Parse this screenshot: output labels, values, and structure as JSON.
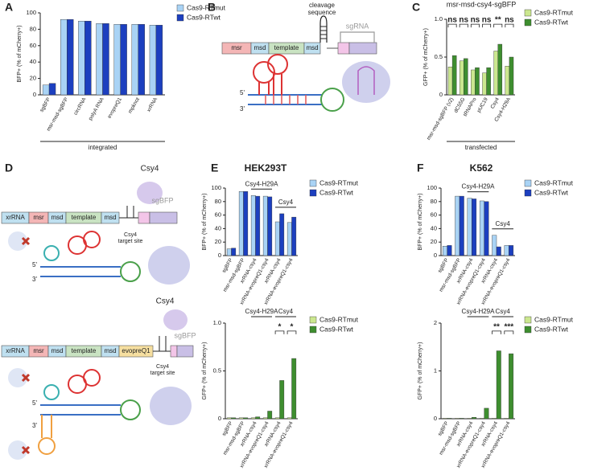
{
  "panel_labels": [
    "A",
    "B",
    "C",
    "D",
    "E",
    "F"
  ],
  "chart_data": [
    {
      "type": "bar",
      "ylabel": "BFP+ (% of mCherry+)",
      "xlabel": "integrated",
      "categories": [
        "sgBFP",
        "msr-msd-sgBFP",
        "circRNA",
        "polyA RNA",
        "evopreQ1",
        "mpknot",
        "xrRNA"
      ],
      "series": [
        {
          "name": "Cas9-RTmut",
          "color": "#a9d3f5",
          "values": [
            12,
            92,
            90,
            87,
            86,
            86,
            85
          ]
        },
        {
          "name": "Cas9-RTwt",
          "color": "#1c3fbf",
          "values": [
            14,
            92,
            90,
            87,
            86,
            86,
            85
          ]
        }
      ],
      "ylim": [
        0,
        100
      ],
      "yticks": [
        0,
        20,
        40,
        60,
        80,
        100
      ]
    },
    {
      "type": "bar",
      "title": "msr-msd-csy4-sgBFP",
      "ylabel": "GFP+ (% of mCherry+)",
      "xlabel": "transfected",
      "categories": [
        "msr-msd-sgBFP (v2)",
        "dC55G",
        "tRNAPro",
        "pUC19",
        "Csy4",
        "Csy4-H29A"
      ],
      "series": [
        {
          "name": "Cas9-RTmut",
          "color": "#cbe78f",
          "values": [
            0.37,
            0.45,
            0.33,
            0.29,
            0.58,
            0.38
          ]
        },
        {
          "name": "Cas9-RTwt",
          "color": "#3e8e2f",
          "values": [
            0.52,
            0.48,
            0.36,
            0.36,
            0.67,
            0.5
          ]
        }
      ],
      "significance": [
        "ns",
        "ns",
        "ns",
        "ns",
        "**",
        "ns"
      ],
      "ylim": [
        0,
        1
      ],
      "yticks": [
        0,
        0.5,
        {
          "value": 1,
          "label": "1.0"
        }
      ]
    },
    {
      "type": "bar",
      "title": "HEK293T",
      "ylabel": "BFP+ (% of mCherry+)",
      "categories": [
        "sgBFP",
        "msr-msd-sgBFP",
        "xrRNA-csy4",
        "xrRNA-evopreQ1-csy4",
        "xrRNA-csy4",
        "xrRNA-evopreQ1-csy4"
      ],
      "series": [
        {
          "name": "Cas9-RTmut",
          "color": "#a9d3f5",
          "values": [
            10,
            95,
            89,
            88,
            50,
            49
          ]
        },
        {
          "name": "Cas9-RTwt",
          "color": "#1c3fbf",
          "values": [
            11,
            95,
            88,
            87,
            62,
            57
          ]
        }
      ],
      "groups": [
        {
          "label": "Csy4-H29A",
          "span": [
            2,
            3
          ]
        },
        {
          "label": "Csy4",
          "span": [
            4,
            5
          ]
        }
      ],
      "ylim": [
        0,
        100
      ],
      "yticks": [
        0,
        20,
        40,
        60,
        80,
        100
      ]
    },
    {
      "type": "bar",
      "ylabel": "GFP+ (% of mCherry+)",
      "categories": [
        "sgBFP",
        "msr-msd-sgBFP",
        "xrRNA-csy4",
        "xrRNA-evopreQ1-csy4",
        "xrRNA-csy4",
        "xrRNA-evopreQ1-csy4"
      ],
      "series": [
        {
          "name": "Cas9-RTmut",
          "color": "#cbe78f",
          "values": [
            0.01,
            0.01,
            0.01,
            0.01,
            0.01,
            0.01
          ]
        },
        {
          "name": "Cas9-RTwt",
          "color": "#3e8e2f",
          "values": [
            0.01,
            0.01,
            0.02,
            0.08,
            0.4,
            0.63
          ]
        }
      ],
      "groups": [
        {
          "label": "Csy4-H29A",
          "span": [
            2,
            3
          ]
        },
        {
          "label": "Csy4",
          "span": [
            4,
            5
          ]
        }
      ],
      "significance": [
        null,
        null,
        null,
        null,
        "*",
        "*"
      ],
      "ylim": [
        0,
        1
      ],
      "yticks": [
        0,
        0.5,
        {
          "value": 1,
          "label": "1.0"
        }
      ]
    },
    {
      "type": "bar",
      "title": "K562",
      "ylabel": "BFP+ (% of mCherry+)",
      "categories": [
        "sgBFP",
        "msr-msd-sgBFP",
        "xrRNA-csy4",
        "xrRNA-evopreQ1-csy4",
        "xrRNA-csy4",
        "xrRNA-evopreQ1-csy4"
      ],
      "series": [
        {
          "name": "Cas9-RTmut",
          "color": "#a9d3f5",
          "values": [
            14,
            88,
            85,
            81,
            30,
            15
          ]
        },
        {
          "name": "Cas9-RTwt",
          "color": "#1c3fbf",
          "values": [
            15,
            88,
            84,
            80,
            13,
            15
          ]
        }
      ],
      "groups": [
        {
          "label": "Csy4-H29A",
          "span": [
            2,
            3
          ]
        },
        {
          "label": "Csy4",
          "span": [
            4,
            5
          ]
        }
      ],
      "ylim": [
        0,
        100
      ],
      "yticks": [
        0,
        20,
        40,
        60,
        80,
        100
      ]
    },
    {
      "type": "bar",
      "ylabel": "GFP+ (% of mCherry+)",
      "categories": [
        "sgBFP",
        "msr-msd-sgBFP",
        "xrRNA-csy4",
        "xrRNA-evopreQ1-csy4",
        "xrRNA-csy4",
        "xrRNA-evopreQ1-csy4"
      ],
      "series": [
        {
          "name": "Cas9-RTmut",
          "color": "#cbe78f",
          "values": [
            0.01,
            0.01,
            0.01,
            0.01,
            0.01,
            0.01
          ]
        },
        {
          "name": "Cas9-RTwt",
          "color": "#3e8e2f",
          "values": [
            0.01,
            0.01,
            0.03,
            0.22,
            1.42,
            1.36
          ]
        }
      ],
      "groups": [
        {
          "label": "Csy4-H29A",
          "span": [
            2,
            3
          ]
        },
        {
          "label": "Csy4",
          "span": [
            4,
            5
          ]
        }
      ],
      "significance": [
        null,
        null,
        null,
        null,
        "**",
        "***"
      ],
      "ylim": [
        0,
        2
      ],
      "yticks": [
        0,
        1,
        2
      ]
    }
  ],
  "diagrams": {
    "B": {
      "cleavage": [
        "cleavage",
        "sequence"
      ],
      "segments": [
        "msr",
        "msd",
        "template",
        "msd"
      ],
      "guide": "sgRNA",
      "five_prime": "5'",
      "three_prime": "3'"
    },
    "D": {
      "top": {
        "enzyme": "Csy4",
        "segments": [
          "xrRNA",
          "msr",
          "msd",
          "template",
          "msd"
        ],
        "guide": "sgBFP",
        "site": [
          "Csy4",
          "target site"
        ],
        "five_prime": "5'",
        "three_prime": "3'"
      },
      "bottom": {
        "enzyme": "Csy4",
        "segments": [
          "xrRNA",
          "msr",
          "msd",
          "template",
          "msd",
          "evopreQ1"
        ],
        "guide": "sgBFP",
        "site": [
          "Csy4",
          "target site"
        ],
        "five_prime": "5'",
        "three_prime": "3'"
      }
    }
  }
}
